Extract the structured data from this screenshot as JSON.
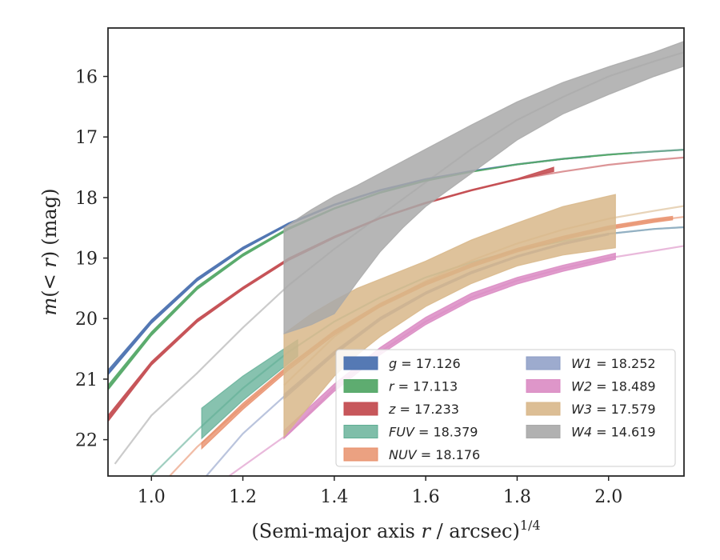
{
  "chart_data": {
    "type": "line",
    "xlabel": "(Semi-major axis r / arcsec)",
    "xlabel_parts": {
      "prefix": "(Semi-major axis ",
      "var": "r",
      "suffix": " / arcsec)",
      "sup": "1/4"
    },
    "ylabel": "m(< r) (mag)",
    "ylabel_parts": {
      "m": "m",
      "open": "(",
      "lt": "< ",
      "r": "r",
      "close": ")",
      "unit": "(mag)"
    },
    "xlim": [
      0.905,
      2.165
    ],
    "ylim": [
      22.6,
      15.2
    ],
    "y_inverted": true,
    "xticks": [
      "1.0",
      "1.2",
      "1.4",
      "1.6",
      "1.8",
      "2.0"
    ],
    "yticks": [
      "16",
      "17",
      "18",
      "19",
      "20",
      "21",
      "22"
    ],
    "legend_position": "lower-right",
    "legend": [
      {
        "var": "g",
        "value": "17.126"
      },
      {
        "var": "r",
        "value": "17.113"
      },
      {
        "var": "z",
        "value": "17.233"
      },
      {
        "var": "FUV",
        "value": "18.379"
      },
      {
        "var": "NUV",
        "value": "18.176"
      },
      {
        "var": "W1",
        "value": "18.252"
      },
      {
        "var": "W2",
        "value": "18.489"
      },
      {
        "var": "W3",
        "value": "17.579"
      },
      {
        "var": "W4",
        "value": "14.619"
      }
    ],
    "series": [
      {
        "name": "g = 17.126",
        "color": "#4c72b0",
        "opacity": 0.9,
        "band": {
          "x": [
            0.905,
            1.0,
            1.1,
            1.2,
            1.3,
            1.4,
            1.5,
            1.6,
            1.7,
            1.8,
            1.9,
            1.96
          ],
          "y_low": [
            20.93,
            20.08,
            19.38,
            18.86,
            18.45,
            18.13,
            17.89,
            17.71,
            17.57,
            17.46,
            17.37,
            17.33
          ],
          "y_high": [
            20.85,
            20.02,
            19.33,
            18.82,
            18.42,
            18.11,
            17.87,
            17.69,
            17.56,
            17.45,
            17.36,
            17.32
          ]
        },
        "model": {
          "x": [
            0.905,
            1.0,
            1.1,
            1.2,
            1.3,
            1.4,
            1.5,
            1.6,
            1.7,
            1.8,
            1.9,
            2.0,
            2.1,
            2.165
          ],
          "y": [
            20.9,
            20.05,
            19.35,
            18.84,
            18.44,
            18.12,
            17.88,
            17.7,
            17.56,
            17.45,
            17.36,
            17.29,
            17.24,
            17.21
          ]
        }
      },
      {
        "name": "r = 17.113",
        "color": "#55a868",
        "opacity": 0.9,
        "band": {
          "x": [
            0.905,
            1.0,
            1.1,
            1.2,
            1.3,
            1.4,
            1.5,
            1.6,
            1.7,
            1.8,
            1.9,
            2.0,
            2.05
          ],
          "y_low": [
            21.18,
            20.28,
            19.52,
            18.97,
            18.53,
            18.19,
            17.93,
            17.73,
            17.58,
            17.46,
            17.37,
            17.3,
            17.27
          ],
          "y_high": [
            21.1,
            20.22,
            19.47,
            18.93,
            18.5,
            18.17,
            17.91,
            17.71,
            17.57,
            17.45,
            17.36,
            17.29,
            17.26
          ]
        },
        "model": {
          "x": [
            0.905,
            1.0,
            1.1,
            1.2,
            1.3,
            1.4,
            1.5,
            1.6,
            1.7,
            1.8,
            1.9,
            2.0,
            2.1,
            2.165
          ],
          "y": [
            21.15,
            20.25,
            19.5,
            18.95,
            18.52,
            18.18,
            17.92,
            17.72,
            17.57,
            17.45,
            17.36,
            17.29,
            17.24,
            17.21
          ]
        }
      },
      {
        "name": "z = 17.233",
        "color": "#c44e52",
        "opacity": 0.9,
        "band": {
          "x": [
            0.905,
            1.0,
            1.1,
            1.2,
            1.3,
            1.4,
            1.5,
            1.6,
            1.7,
            1.8,
            1.88
          ],
          "y_low": [
            21.7,
            20.77,
            20.06,
            19.52,
            19.04,
            18.67,
            18.35,
            18.1,
            17.89,
            17.71,
            17.57
          ],
          "y_high": [
            21.6,
            20.71,
            20.01,
            19.48,
            19.0,
            18.64,
            18.33,
            18.08,
            17.87,
            17.69,
            17.5
          ]
        },
        "model": {
          "x": [
            0.905,
            1.0,
            1.1,
            1.2,
            1.3,
            1.4,
            1.5,
            1.6,
            1.7,
            1.8,
            1.9,
            2.0,
            2.1,
            2.165
          ],
          "y": [
            21.65,
            20.74,
            20.03,
            19.5,
            19.02,
            18.65,
            18.34,
            18.09,
            17.88,
            17.7,
            17.57,
            17.46,
            17.38,
            17.34
          ]
        }
      },
      {
        "name": "FUV = 18.379",
        "color": "#5fae94",
        "opacity": 0.75,
        "band": {
          "x": [
            1.11,
            1.2,
            1.3,
            1.32
          ],
          "y_low": [
            21.98,
            21.35,
            20.74,
            20.62
          ],
          "y_high": [
            21.48,
            20.95,
            20.45,
            20.35
          ]
        },
        "model": {
          "x": [
            1.0,
            1.1,
            1.2,
            1.3,
            1.4,
            1.5,
            1.6,
            1.7,
            1.8,
            1.9,
            2.0,
            2.1,
            2.165
          ],
          "y": [
            22.6,
            21.85,
            21.15,
            20.55,
            20.05,
            19.65,
            19.32,
            19.07,
            18.87,
            18.72,
            18.6,
            18.52,
            18.49
          ]
        }
      },
      {
        "name": "NUV = 18.176",
        "color": "#e8906b",
        "opacity": 0.8,
        "band": {
          "x": [
            1.11,
            1.2,
            1.3,
            1.4,
            1.5,
            1.6,
            1.7,
            1.8,
            1.9,
            2.0,
            2.1,
            2.14
          ],
          "y_low": [
            22.15,
            21.5,
            20.85,
            20.27,
            19.81,
            19.45,
            19.15,
            18.9,
            18.7,
            18.53,
            18.41,
            18.37
          ],
          "y_high": [
            22.05,
            21.4,
            20.77,
            20.2,
            19.75,
            19.39,
            19.09,
            18.84,
            18.64,
            18.47,
            18.35,
            18.31
          ]
        },
        "model": {
          "x": [
            1.04,
            1.1,
            1.2,
            1.3,
            1.4,
            1.5,
            1.6,
            1.7,
            1.8,
            1.9,
            2.0,
            2.1,
            2.165
          ],
          "y": [
            22.6,
            22.12,
            21.45,
            20.8,
            20.23,
            19.78,
            19.42,
            19.12,
            18.87,
            18.67,
            18.5,
            18.38,
            18.32
          ]
        }
      },
      {
        "name": "W1 = 18.252",
        "color": "#8c9cc6",
        "opacity": 0.8,
        "band": {
          "x": [
            1.29,
            1.4,
            1.5,
            1.6,
            1.7,
            1.8,
            1.9,
            2.0
          ],
          "y_low": [
            21.33,
            20.6,
            20.03,
            19.6,
            19.26,
            18.99,
            18.78,
            18.62
          ],
          "y_high": [
            21.25,
            20.54,
            19.98,
            19.56,
            19.22,
            18.96,
            18.75,
            18.59
          ]
        },
        "model": {
          "x": [
            1.12,
            1.2,
            1.3,
            1.4,
            1.5,
            1.6,
            1.7,
            1.8,
            1.9,
            2.0,
            2.1,
            2.165
          ],
          "y": [
            22.6,
            21.9,
            21.22,
            20.57,
            20.0,
            19.58,
            19.24,
            18.97,
            18.76,
            18.6,
            18.52,
            18.49
          ]
        }
      },
      {
        "name": "W2 = 18.489",
        "color": "#da8bc3",
        "opacity": 0.85,
        "band": {
          "x": [
            1.29,
            1.4,
            1.5,
            1.6,
            1.7,
            1.8,
            1.9,
            2.015
          ],
          "y_low": [
            21.98,
            21.2,
            20.6,
            20.1,
            19.7,
            19.43,
            19.22,
            19.02
          ],
          "y_high": [
            21.85,
            21.08,
            20.48,
            19.98,
            19.58,
            19.32,
            19.12,
            18.92
          ]
        },
        "model": {
          "x": [
            1.17,
            1.3,
            1.4,
            1.5,
            1.6,
            1.7,
            1.8,
            1.9,
            2.0,
            2.1,
            2.165
          ],
          "y": [
            22.6,
            21.9,
            21.15,
            20.55,
            20.05,
            19.65,
            19.37,
            19.17,
            19.0,
            18.88,
            18.8
          ]
        }
      },
      {
        "name": "W3 = 17.579",
        "color": "#d8b78a",
        "opacity": 0.85,
        "band": {
          "x": [
            1.29,
            1.35,
            1.4,
            1.45,
            1.5,
            1.6,
            1.7,
            1.8,
            1.9,
            2.015
          ],
          "y_low": [
            21.95,
            21.4,
            20.95,
            20.6,
            20.3,
            19.8,
            19.42,
            19.13,
            18.95,
            18.83
          ],
          "y_high": [
            20.25,
            19.92,
            19.7,
            19.5,
            19.35,
            19.05,
            18.7,
            18.42,
            18.15,
            17.95
          ]
        },
        "model": {
          "x": [
            1.29,
            1.4,
            1.5,
            1.6,
            1.7,
            1.8,
            1.9,
            2.0,
            2.1,
            2.165
          ],
          "y": [
            21.1,
            20.3,
            19.78,
            19.38,
            19.04,
            18.76,
            18.53,
            18.35,
            18.22,
            18.14
          ]
        }
      },
      {
        "name": "W4 = 14.619",
        "color": "#a9a9a9",
        "opacity": 0.85,
        "band": {
          "x": [
            1.29,
            1.35,
            1.4,
            1.45,
            1.5,
            1.55,
            1.6,
            1.7,
            1.8,
            1.9,
            2.0,
            2.1,
            2.165
          ],
          "y_low": [
            20.25,
            20.1,
            19.92,
            19.4,
            18.9,
            18.5,
            18.15,
            17.6,
            17.05,
            16.62,
            16.3,
            16.0,
            15.83
          ],
          "y_high": [
            18.5,
            18.2,
            17.98,
            17.8,
            17.6,
            17.4,
            17.2,
            16.8,
            16.42,
            16.1,
            15.84,
            15.6,
            15.42
          ]
        },
        "model": {
          "x": [
            0.92,
            1.0,
            1.1,
            1.2,
            1.3,
            1.4,
            1.5,
            1.6,
            1.7,
            1.8,
            1.9,
            2.0,
            2.1,
            2.165
          ],
          "y": [
            22.4,
            21.6,
            20.9,
            20.15,
            19.45,
            18.85,
            18.3,
            17.75,
            17.2,
            16.72,
            16.34,
            16.0,
            15.75,
            15.6
          ]
        }
      }
    ]
  }
}
